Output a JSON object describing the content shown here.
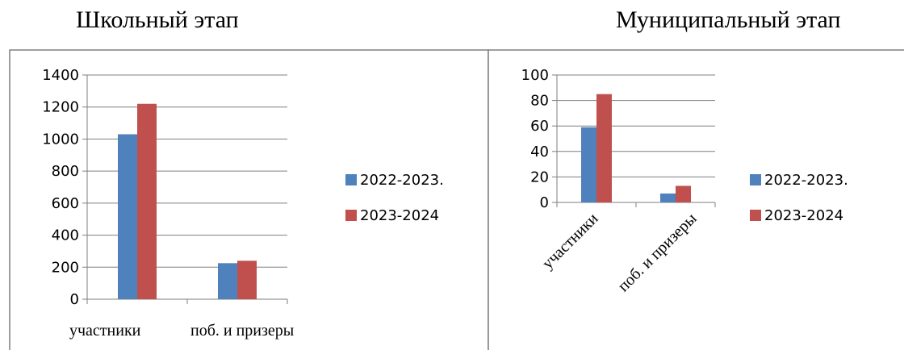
{
  "colors": {
    "series_a": "#4f81bd",
    "series_b": "#c0504d",
    "grid": "#7f7f7f",
    "frame": "#7f7f7f"
  },
  "chart_data": [
    {
      "type": "bar",
      "title": "Школьный этап",
      "categories": [
        "участники",
        "поб. и призеры"
      ],
      "series": [
        {
          "name": "2022-2023.",
          "values": [
            1030,
            225
          ]
        },
        {
          "name": "2023-2024",
          "values": [
            1220,
            240
          ]
        }
      ],
      "ylim": [
        0,
        1400
      ],
      "yticks": [
        0,
        200,
        400,
        600,
        800,
        1000,
        1200,
        1400
      ],
      "grid": true,
      "legend": "right"
    },
    {
      "type": "bar",
      "title": "Муниципальный этап",
      "categories": [
        "участники",
        "поб. и призеры"
      ],
      "series": [
        {
          "name": "2022-2023.",
          "values": [
            59,
            7
          ]
        },
        {
          "name": "2023-2024",
          "values": [
            85,
            13
          ]
        }
      ],
      "ylim": [
        0,
        100
      ],
      "yticks": [
        0,
        20,
        40,
        60,
        80,
        100
      ],
      "grid": true,
      "legend": "right"
    }
  ]
}
